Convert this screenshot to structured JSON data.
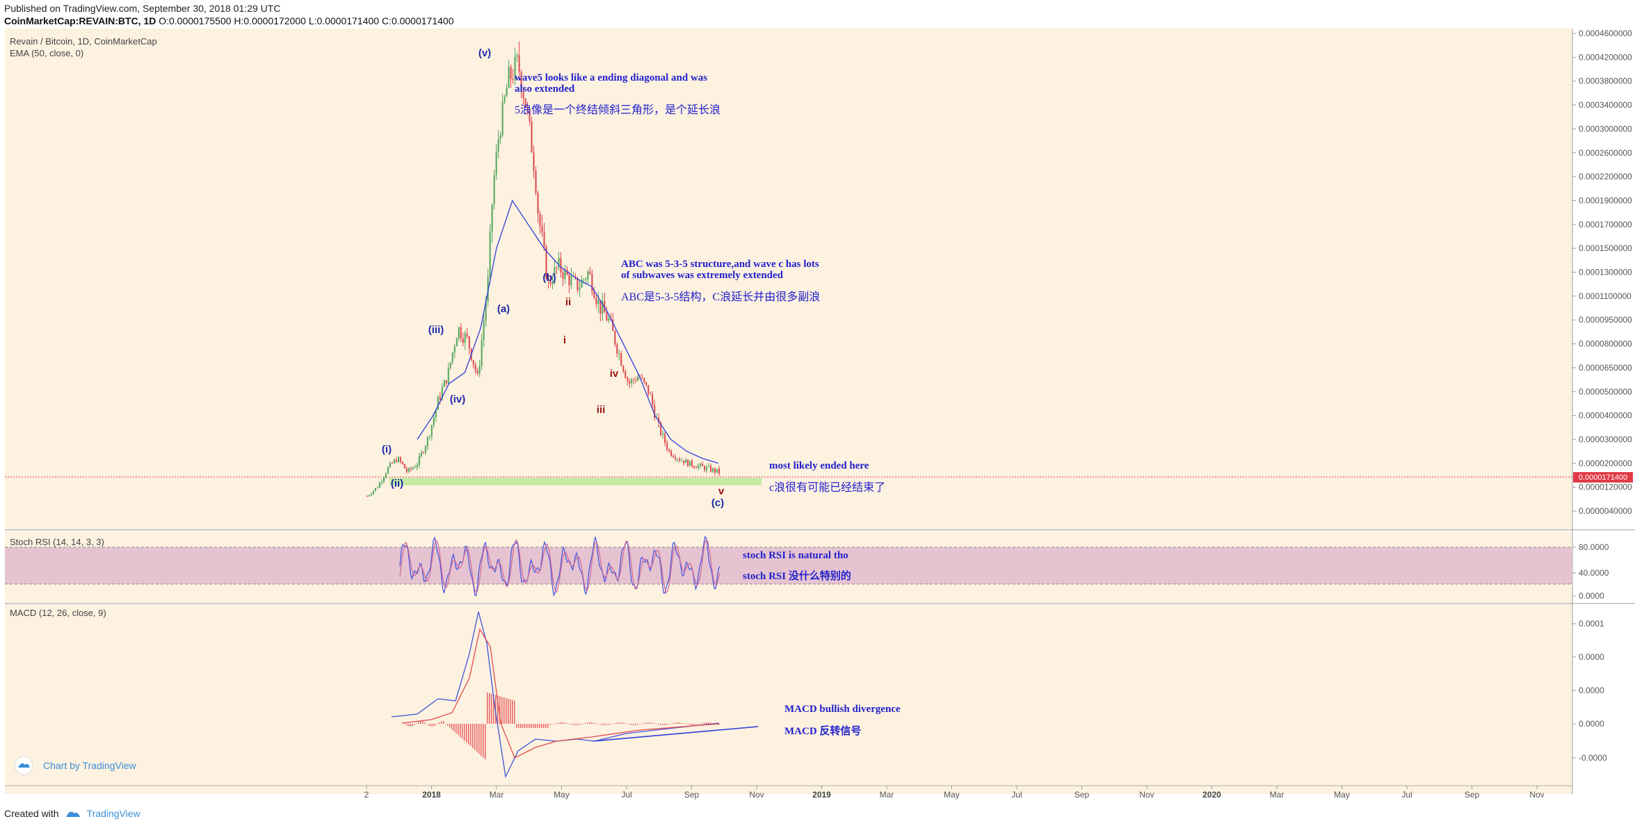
{
  "header": {
    "published": "Published on TradingView.com, September 30, 2018 01:29 UTC",
    "symbol": "CoinMarketCap:REVAIN:BTC, 1D",
    "ohlc": "O:0.0000175500 H:0.0000172000 L:0.0000171400 C:0.0000171400"
  },
  "footer": {
    "created_with": "Created with",
    "brand": "TradingView"
  },
  "chart_badge": "Chart by TradingView",
  "colors": {
    "background": "#fdf1e0",
    "ema": "#2f3fd9",
    "candle_up": "#4fa55a",
    "candle_down": "#d9464b",
    "annotation": "#2222cc",
    "wave_red": "#9a1010",
    "price_tag": "#e03a45",
    "rsi_band": "#e6c3d0",
    "macd_line": "#3e52d8",
    "signal_line": "#e34b4b",
    "support_zone": "#c6eaa4"
  },
  "chart_data": [
    {
      "type": "candlestick",
      "title": "Revain / Bitcoin, 1D, CoinMarketCap",
      "indicator": "EMA (50, close, 0)",
      "x_ticks": [
        "2",
        "2018",
        "Mar",
        "May",
        "Jul",
        "Sep",
        "Nov",
        "2019",
        "Mar",
        "May",
        "Jul",
        "Sep",
        "Nov",
        "2020",
        "Mar",
        "May",
        "Jul",
        "Sep",
        "Nov"
      ],
      "y_ticks": [
        "0.0004600000",
        "0.0004200000",
        "0.0003800000",
        "0.0003400000",
        "0.0003000000",
        "0.0002600000",
        "0.0002200000",
        "0.0001900000",
        "0.0001700000",
        "0.0001500000",
        "0.0001300000",
        "0.0001100000",
        "0.0000950000",
        "0.0000800000",
        "0.0000650000",
        "0.0000500000",
        "0.0000400000",
        "0.0000300000",
        "0.0000200000",
        "0.0000120000",
        "0.0000040000"
      ],
      "last_price": "0.0000171400",
      "close_series": [
        9e-06,
        1.2e-05,
        1.8e-05,
        2.2e-05,
        1.7e-05,
        2e-05,
        3e-05,
        4.5e-05,
        6e-05,
        9e-05,
        8.2e-05,
        5.8e-05,
        0.00012,
        0.00028,
        0.00038,
        0.00041,
        0.00032,
        0.00018,
        0.00012,
        0.000135,
        0.000125,
        0.000118,
        0.00013,
        0.000105,
        9.5e-05,
        7.5e-05,
        5.5e-05,
        6e-05,
        5e-05,
        3.5e-05,
        2.5e-05,
        2.2e-05,
        2e-05,
        1.9e-05,
        1.8e-05,
        1.7e-05
      ],
      "ema_series": [
        3e-05,
        4e-05,
        5.5e-05,
        6.2e-05,
        9e-05,
        0.00015,
        0.00019,
        0.00017,
        0.00015,
        0.000135,
        0.000125,
        0.000118,
        0.0001,
        8e-05,
        6e-05,
        4e-05,
        3e-05,
        2.5e-05,
        2.2e-05,
        2e-05
      ],
      "wave_labels": [
        "(i)",
        "(ii)",
        "(iii)",
        "(iv)",
        "(v)",
        "(a)",
        "(b)",
        "(c)",
        "i",
        "ii",
        "iii",
        "iv",
        "v"
      ],
      "annotations": {
        "wave5_en_1": "wave5 looks like a ending diagonal and was",
        "wave5_en_2": "also extended",
        "wave5_zh": "5浪像是一个终结倾斜三角形，是个延长浪",
        "abc_en_1": "ABC was 5-3-5 structure,and wave c has lots",
        "abc_en_2": "of subwaves was extremely extended",
        "abc_zh": "ABC是5-3-5结构，C浪延长并由很多副浪",
        "end_en": "most likely ended here",
        "end_zh": "c浪很有可能已经结束了"
      }
    },
    {
      "type": "line",
      "title": "Stoch RSI (14, 14, 3, 3)",
      "y_ticks": [
        "80.0000",
        "40.0000",
        "0.0000"
      ],
      "annotations": {
        "en": "stoch RSI is natural tho",
        "zh": "stoch RSI 没什么特别的"
      }
    },
    {
      "type": "line",
      "title": "MACD (12, 26, close, 9)",
      "y_ticks": [
        "0.0001",
        "0.0000",
        "0.0000",
        "0.0000",
        "-0.0000"
      ],
      "annotations": {
        "en": "MACD bullish divergence",
        "zh": "MACD 反转信号"
      }
    }
  ]
}
